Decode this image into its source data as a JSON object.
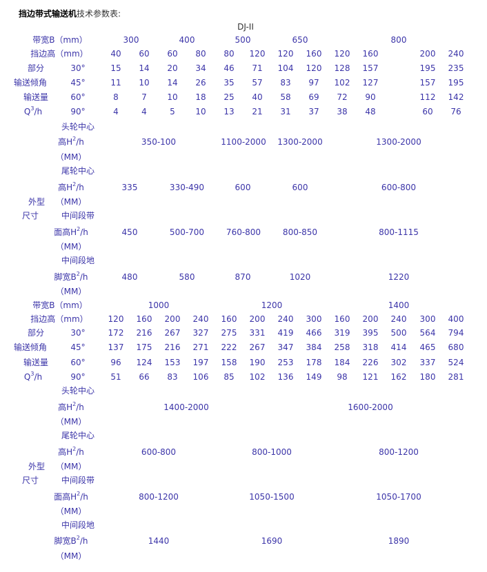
{
  "title": {
    "bold": "挡边带式输送机",
    "rest": "技术参数表:"
  },
  "model": "DJ-II",
  "labels": {
    "belt_width": "带宽B（mm）",
    "sidewall_height": "挡边高（mm）",
    "capacity": [
      "部分",
      "输送倾角",
      "输送量",
      "Q³/h"
    ],
    "angles": [
      "30°",
      "45°",
      "60°",
      "90°"
    ],
    "outline": [
      "外型",
      "尺寸"
    ],
    "dimensions": [
      {
        "line1": "头轮中心",
        "line2": "高H²/h",
        "unit": "（MM）"
      },
      {
        "line1": "尾轮中心",
        "line2": "高H²/h",
        "unit": "（MM）"
      },
      {
        "line1": "中间段带",
        "line2": "面高H²/h",
        "unit": "（MM）"
      },
      {
        "line1": "中间段地",
        "line2": "脚宽B²/h",
        "unit": "（MM）"
      }
    ]
  },
  "sections": [
    {
      "belt_widths": [
        "300",
        "400",
        "500",
        "650",
        "800"
      ],
      "sidewall_heights": [
        "40",
        "60",
        "60",
        "80",
        "80",
        "120",
        "120",
        "160",
        "120",
        "160",
        "",
        "200",
        "240"
      ],
      "capacity": [
        [
          "15",
          "14",
          "20",
          "34",
          "46",
          "71",
          "104",
          "120",
          "128",
          "157",
          "",
          "195",
          "235"
        ],
        [
          "11",
          "10",
          "14",
          "26",
          "35",
          "57",
          "83",
          "97",
          "102",
          "127",
          "",
          "157",
          "195"
        ],
        [
          "8",
          "7",
          "10",
          "18",
          "25",
          "40",
          "58",
          "69",
          "72",
          "90",
          "",
          "112",
          "142"
        ],
        [
          "4",
          "4",
          "5",
          "10",
          "13",
          "21",
          "31",
          "37",
          "38",
          "48",
          "",
          "60",
          "76"
        ]
      ],
      "dimensions": [
        [
          "350-100",
          "1100-2000",
          "1300-2000",
          "1300-2000"
        ],
        [
          "335",
          "330-490",
          "600",
          "600",
          "600-800"
        ],
        [
          "450",
          "500-700",
          "760-800",
          "800-850",
          "800-1115"
        ],
        [
          "480",
          "580",
          "870",
          "1020",
          "1220"
        ]
      ]
    },
    {
      "belt_widths": [
        "1000",
        "1200",
        "1400"
      ],
      "sidewall_heights": [
        "120",
        "160",
        "200",
        "240",
        "160",
        "200",
        "240",
        "300",
        "160",
        "200",
        "240",
        "300",
        "400"
      ],
      "capacity": [
        [
          "172",
          "216",
          "267",
          "327",
          "275",
          "331",
          "419",
          "466",
          "319",
          "395",
          "500",
          "564",
          "794"
        ],
        [
          "137",
          "175",
          "216",
          "271",
          "222",
          "267",
          "347",
          "384",
          "258",
          "318",
          "414",
          "465",
          "680"
        ],
        [
          "96",
          "124",
          "153",
          "197",
          "158",
          "190",
          "253",
          "178",
          "184",
          "226",
          "302",
          "337",
          "524"
        ],
        [
          "51",
          "66",
          "83",
          "106",
          "85",
          "102",
          "136",
          "149",
          "98",
          "121",
          "162",
          "180",
          "281"
        ]
      ],
      "dimensions": [
        [
          "1400-2000",
          "1600-2000"
        ],
        [
          "600-800",
          "800-1000",
          "800-1200"
        ],
        [
          "800-1200",
          "1050-1500",
          "1050-1700"
        ],
        [
          "1440",
          "1690",
          "1890"
        ]
      ]
    }
  ]
}
